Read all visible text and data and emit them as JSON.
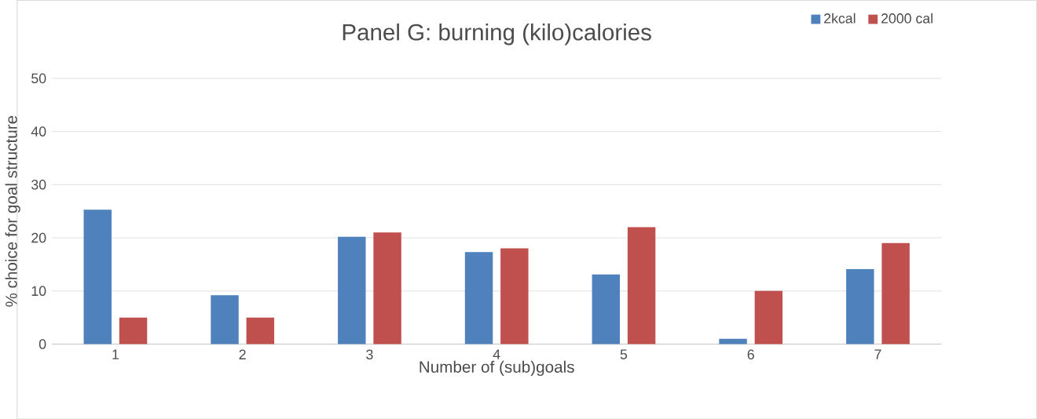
{
  "chart_data": {
    "type": "bar",
    "title": "Panel G: burning (kilo)calories",
    "xlabel": "Number of (sub)goals",
    "ylabel": "% choice for goal structure",
    "categories": [
      "1",
      "2",
      "3",
      "4",
      "5",
      "6",
      "7"
    ],
    "series": [
      {
        "name": "2kcal",
        "color": "#4f81bd",
        "values": [
          25.3,
          9.2,
          20.2,
          17.3,
          13.1,
          1.0,
          14.1
        ]
      },
      {
        "name": "2000 cal",
        "color": "#c0504d",
        "values": [
          5,
          5,
          21,
          18,
          22,
          10,
          19
        ]
      }
    ],
    "ylim": [
      0,
      50
    ],
    "yticks": [
      0,
      10,
      20,
      30,
      40,
      50
    ],
    "grid": "y",
    "legend": "top right"
  }
}
